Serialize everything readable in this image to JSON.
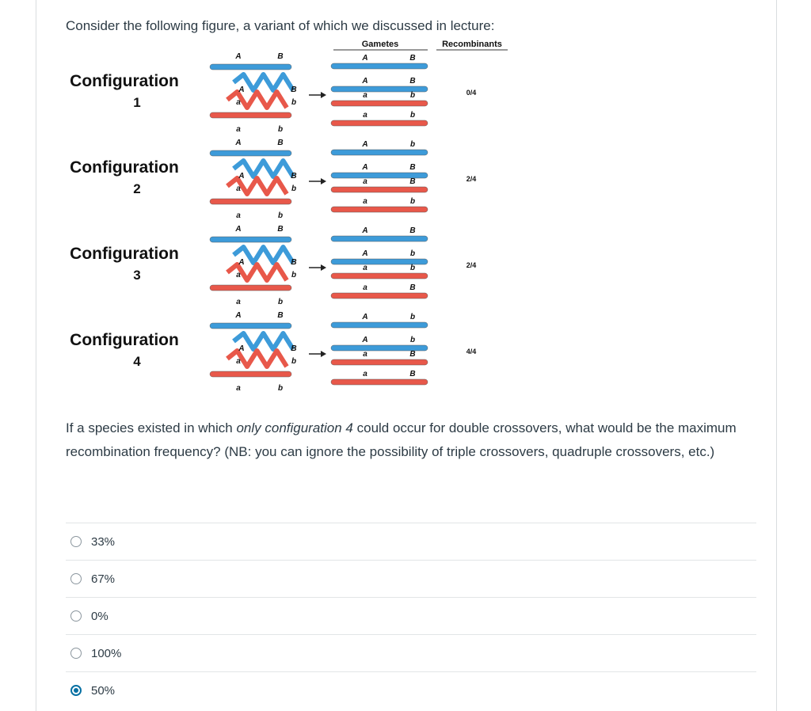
{
  "prompt": "Consider the following figure, a variant of which we discussed in lecture:",
  "figure": {
    "header_gametes": "Gametes",
    "header_recombinants": "Recombinants",
    "configurations": [
      {
        "line1": "Configuration",
        "line2": "1",
        "top_labels": [
          "A",
          "B"
        ],
        "mid_labels": [
          "A",
          "a",
          "B",
          "b"
        ],
        "bottom_labels": [
          "a",
          "b"
        ],
        "gamete_top": [
          "A",
          "B"
        ],
        "gamete_rows": [
          [
            "A",
            "B"
          ],
          [
            "a",
            "b"
          ]
        ],
        "gamete_bottom": [
          "a",
          "b"
        ],
        "recombinants": "0/4"
      },
      {
        "line1": "Configuration",
        "line2": "2",
        "top_labels": [
          "A",
          "B"
        ],
        "mid_labels": [
          "A",
          "a",
          "B",
          "b"
        ],
        "bottom_labels": [
          "a",
          "b"
        ],
        "gamete_top": [
          "A",
          "b"
        ],
        "gamete_rows": [
          [
            "A",
            "B"
          ],
          [
            "a",
            "B"
          ]
        ],
        "gamete_bottom": [
          "a",
          "b"
        ],
        "recombinants": "2/4"
      },
      {
        "line1": "Configuration",
        "line2": "3",
        "top_labels": [
          "A",
          "B"
        ],
        "mid_labels": [
          "A",
          "a",
          "B",
          "b"
        ],
        "bottom_labels": [
          "a",
          "b"
        ],
        "gamete_top": [
          "A",
          "B"
        ],
        "gamete_rows": [
          [
            "A",
            "b"
          ],
          [
            "a",
            "b"
          ]
        ],
        "gamete_bottom": [
          "a",
          "B"
        ],
        "recombinants": "2/4"
      },
      {
        "line1": "Configuration",
        "line2": "4",
        "top_labels": [
          "A",
          "B"
        ],
        "mid_labels": [
          "A",
          "a",
          "B",
          "b"
        ],
        "bottom_labels": [
          "a",
          "b"
        ],
        "gamete_top": [
          "A",
          "b"
        ],
        "gamete_rows": [
          [
            "A",
            "b"
          ],
          [
            "a",
            "B"
          ]
        ],
        "gamete_bottom": [
          "a",
          "B"
        ],
        "recombinants": "4/4"
      }
    ]
  },
  "question": {
    "part1": "If a species existed in which ",
    "emphasis": "only configuration 4",
    "part2": " could occur for double crossovers, what would be the maximum recombination frequency? (NB: you can ignore the possibility of triple crossovers, quadruple crossovers, etc.)"
  },
  "answers": [
    {
      "label": "33%",
      "selected": false
    },
    {
      "label": "67%",
      "selected": false
    },
    {
      "label": "0%",
      "selected": false
    },
    {
      "label": "100%",
      "selected": false
    },
    {
      "label": "50%",
      "selected": true
    }
  ],
  "colors": {
    "blue": "#3d9bd9",
    "red": "#e8584a",
    "text": "#2d3b45",
    "accent": "#0770a3"
  }
}
